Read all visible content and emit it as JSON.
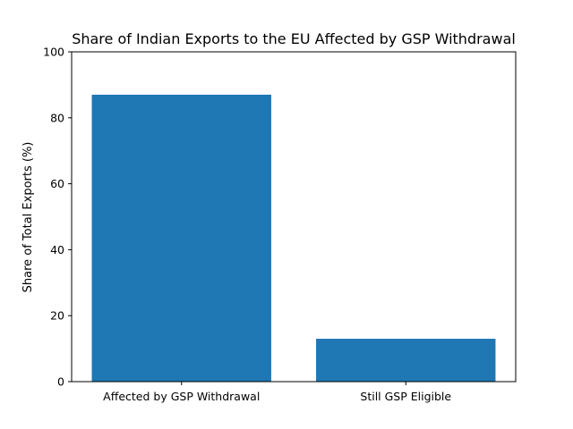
{
  "chart_data": {
    "type": "bar",
    "title": "Share of Indian Exports to the EU Affected by GSP Withdrawal",
    "xlabel": "",
    "ylabel": "Share of Total Exports (%)",
    "categories": [
      "Affected by GSP Withdrawal",
      "Still GSP Eligible"
    ],
    "values": [
      87,
      13
    ],
    "ylim": [
      0,
      100
    ],
    "yticks": [
      0,
      20,
      40,
      60,
      80,
      100
    ],
    "grid": false,
    "bar_color": "#1f77b4"
  }
}
